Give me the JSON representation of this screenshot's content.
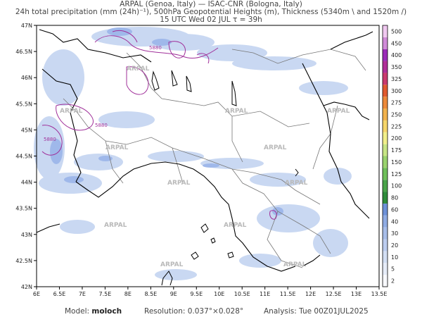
{
  "header": {
    "line1": "ARPAL (Genoa, Italy)  —  ISAC-CNR (Bologna, Italy)",
    "line2": "24h total precipitation (mm (24h)⁻¹), 500hPa Geopotential Heights (m), Thickness (5340m \\ and 1520m /)",
    "line3": "15 UTC Wed 02 JUL    τ = 39h"
  },
  "map": {
    "lat_labels": [
      "47N",
      "46.5N",
      "46N",
      "45.5N",
      "45N",
      "44.5N",
      "44N",
      "43.5N",
      "43N",
      "42.5N",
      "42N"
    ],
    "lon_labels": [
      "6E",
      "6.5E",
      "7E",
      "7.5E",
      "8E",
      "8.5E",
      "9E",
      "9.5E",
      "10E",
      "10.5E",
      "11E",
      "11.5E",
      "12E",
      "12.5E",
      "13E",
      "13.5E"
    ],
    "watermark": "ARPAL",
    "contour_label": "5880",
    "colors": {
      "precip_light": "#c9d8f2",
      "precip_mid": "#9fb8ea",
      "contour": "#a0309a",
      "coast": "#000000",
      "border": "#777777"
    }
  },
  "colorbar": {
    "levels": [
      "2",
      "5",
      "10",
      "20",
      "30",
      "40",
      "60",
      "80",
      "100",
      "125",
      "150",
      "175",
      "200",
      "225",
      "250",
      "275",
      "300",
      "325",
      "350",
      "400",
      "450",
      "500"
    ],
    "colors": [
      "#f8f9fd",
      "#e6ecf8",
      "#d3dff4",
      "#bccdef",
      "#a7bde9",
      "#8fabe3",
      "#6d91d8",
      "#2f8c3a",
      "#4aa34a",
      "#6fbf5a",
      "#9ad36e",
      "#c7e585",
      "#f1ef8a",
      "#f6d66a",
      "#f2b24d",
      "#ec8a3a",
      "#e05a2f",
      "#c93a6e",
      "#b02f98",
      "#9b2cb8",
      "#d08bd8",
      "#f0c8f0"
    ]
  },
  "footer": {
    "model_label": "Model:",
    "model_value": "moloch",
    "resolution": "Resolution: 0.037°×0.028°",
    "analysis": "Analysis: Tue 00Z01JUL2025"
  }
}
